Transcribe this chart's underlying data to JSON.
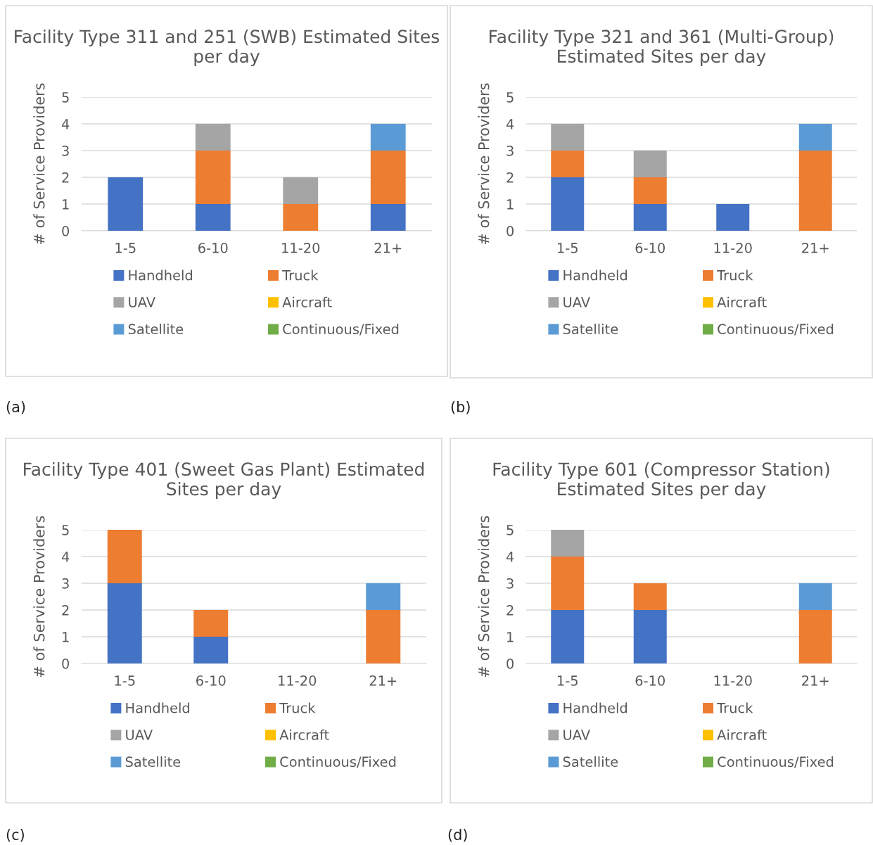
{
  "chart_data": [
    {
      "type": "bar",
      "stacked": true,
      "title": "Facility Type 311 and 251 (SWB) Estimated Sites per day",
      "ylabel": "# of Service Providers",
      "categories": [
        "1-5",
        "6-10",
        "11-20",
        "21+"
      ],
      "ylim": [
        0,
        5
      ],
      "yticks": [
        0,
        1,
        2,
        3,
        4,
        5
      ],
      "grid": "y",
      "legend": "bottom",
      "annotations": [
        "(a)"
      ],
      "series": [
        {
          "name": "Handheld",
          "color": "#4472c4",
          "values": [
            2,
            1,
            0,
            1
          ]
        },
        {
          "name": "Truck",
          "color": "#ed7d31",
          "values": [
            0,
            2,
            1,
            2
          ]
        },
        {
          "name": "UAV",
          "color": "#a5a5a5",
          "values": [
            0,
            1,
            1,
            0
          ]
        },
        {
          "name": "Aircraft",
          "color": "#ffc000",
          "values": [
            0,
            0,
            0,
            0
          ]
        },
        {
          "name": "Satellite",
          "color": "#5b9bd5",
          "values": [
            0,
            0,
            0,
            1
          ]
        },
        {
          "name": "Continuous/Fixed",
          "color": "#70ad47",
          "values": [
            0,
            0,
            0,
            0
          ]
        }
      ]
    },
    {
      "type": "bar",
      "stacked": true,
      "title": "Facility Type 321 and 361 (Multi-Group) Estimated Sites per day",
      "ylabel": "# of Service Providers",
      "categories": [
        "1-5",
        "6-10",
        "11-20",
        "21+"
      ],
      "ylim": [
        0,
        5
      ],
      "yticks": [
        0,
        1,
        2,
        3,
        4,
        5
      ],
      "grid": "y",
      "legend": "bottom",
      "annotations": [
        "(b)"
      ],
      "series": [
        {
          "name": "Handheld",
          "color": "#4472c4",
          "values": [
            2,
            1,
            1,
            0
          ]
        },
        {
          "name": "Truck",
          "color": "#ed7d31",
          "values": [
            1,
            1,
            0,
            3
          ]
        },
        {
          "name": "UAV",
          "color": "#a5a5a5",
          "values": [
            1,
            1,
            0,
            0
          ]
        },
        {
          "name": "Aircraft",
          "color": "#ffc000",
          "values": [
            0,
            0,
            0,
            0
          ]
        },
        {
          "name": "Satellite",
          "color": "#5b9bd5",
          "values": [
            0,
            0,
            0,
            1
          ]
        },
        {
          "name": "Continuous/Fixed",
          "color": "#70ad47",
          "values": [
            0,
            0,
            0,
            0
          ]
        }
      ]
    },
    {
      "type": "bar",
      "stacked": true,
      "title": "Facility Type 401 (Sweet Gas Plant) Estimated Sites per day",
      "ylabel": "# of Service Providers",
      "categories": [
        "1-5",
        "6-10",
        "11-20",
        "21+"
      ],
      "ylim": [
        0,
        5
      ],
      "yticks": [
        0,
        1,
        2,
        3,
        4,
        5
      ],
      "grid": "y",
      "legend": "bottom",
      "annotations": [
        "(c)"
      ],
      "series": [
        {
          "name": "Handheld",
          "color": "#4472c4",
          "values": [
            3,
            1,
            0,
            0
          ]
        },
        {
          "name": "Truck",
          "color": "#ed7d31",
          "values": [
            2,
            1,
            0,
            2
          ]
        },
        {
          "name": "UAV",
          "color": "#a5a5a5",
          "values": [
            0,
            0,
            0,
            0
          ]
        },
        {
          "name": "Aircraft",
          "color": "#ffc000",
          "values": [
            0,
            0,
            0,
            0
          ]
        },
        {
          "name": "Satellite",
          "color": "#5b9bd5",
          "values": [
            0,
            0,
            0,
            1
          ]
        },
        {
          "name": "Continuous/Fixed",
          "color": "#70ad47",
          "values": [
            0,
            0,
            0,
            0
          ]
        }
      ]
    },
    {
      "type": "bar",
      "stacked": true,
      "title": "Facility Type 601 (Compressor Station) Estimated Sites per day",
      "ylabel": "# of Service Providers",
      "categories": [
        "1-5",
        "6-10",
        "11-20",
        "21+"
      ],
      "ylim": [
        0,
        5
      ],
      "yticks": [
        0,
        1,
        2,
        3,
        4,
        5
      ],
      "grid": "y",
      "legend": "bottom",
      "annotations": [
        "(d)"
      ],
      "series": [
        {
          "name": "Handheld",
          "color": "#4472c4",
          "values": [
            2,
            2,
            0,
            0
          ]
        },
        {
          "name": "Truck",
          "color": "#ed7d31",
          "values": [
            2,
            1,
            0,
            2
          ]
        },
        {
          "name": "UAV",
          "color": "#a5a5a5",
          "values": [
            1,
            0,
            0,
            0
          ]
        },
        {
          "name": "Aircraft",
          "color": "#ffc000",
          "values": [
            0,
            0,
            0,
            0
          ]
        },
        {
          "name": "Satellite",
          "color": "#5b9bd5",
          "values": [
            0,
            0,
            0,
            1
          ]
        },
        {
          "name": "Continuous/Fixed",
          "color": "#70ad47",
          "values": [
            0,
            0,
            0,
            0
          ]
        }
      ]
    }
  ]
}
